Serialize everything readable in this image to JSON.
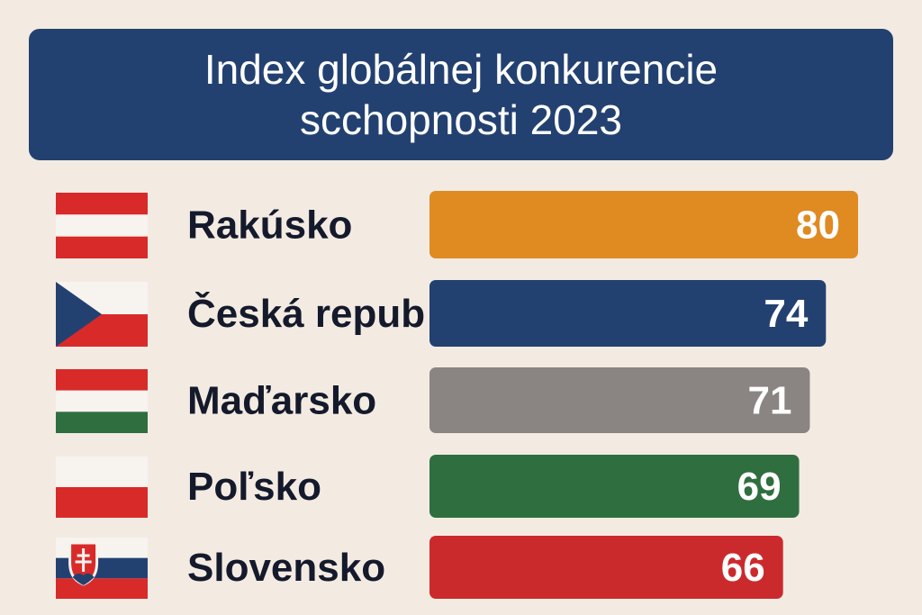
{
  "title": "Index globálnej konkurencie​scchopnosti 2023",
  "chart_data": {
    "type": "bar",
    "orientation": "horizontal",
    "title": "Index globálnej konkurencie​scchopnosti 2023",
    "categories": [
      "Rakúsko",
      "Česká repub",
      "Maďarsko",
      "Poľsko",
      "Slovensko"
    ],
    "values": [
      80,
      74,
      71,
      69,
      66
    ],
    "colors": [
      "#e08a22",
      "#234170",
      "#8a8482",
      "#2f6e3f",
      "#cb2a2d"
    ],
    "flags": [
      "austria-flag",
      "czech-flag",
      "hungary-flag",
      "poland-flag",
      "slovakia-flag"
    ],
    "xlim": [
      0,
      80
    ],
    "grid": false,
    "legend": "none"
  }
}
